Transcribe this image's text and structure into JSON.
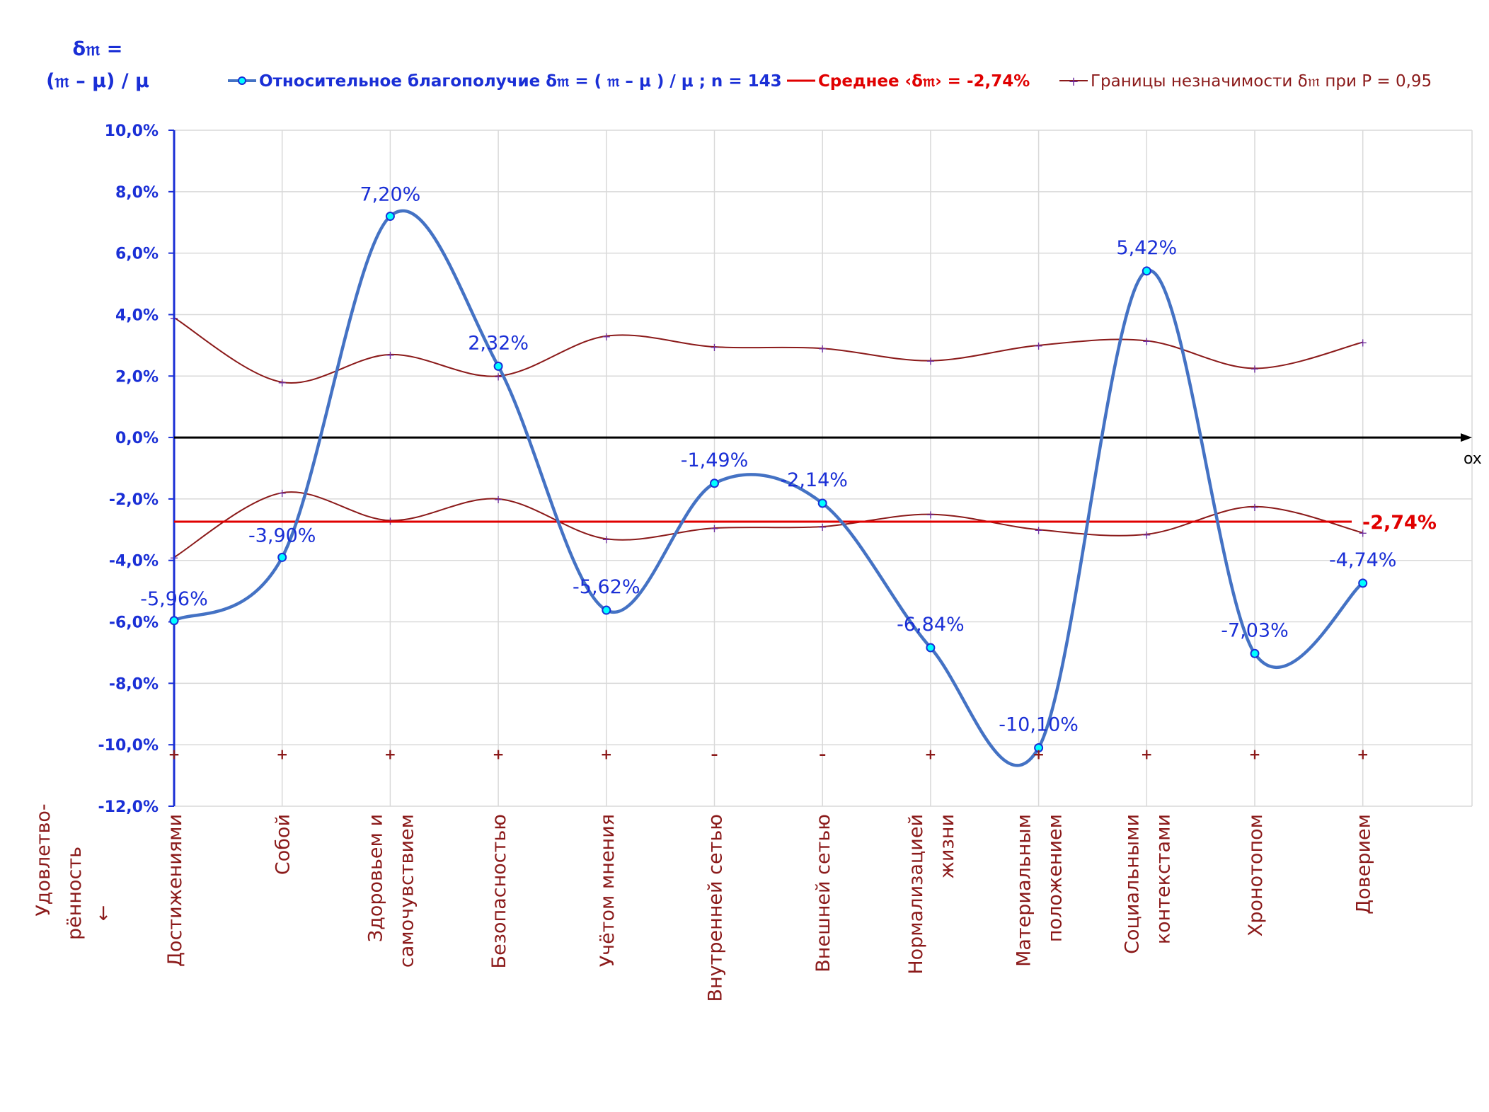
{
  "chart_data": {
    "type": "line",
    "y_title_line1": "δ𝔪 =",
    "y_title_line2": "(𝔪 – μ) / μ",
    "x_title_line1": "Удовлетво-",
    "x_title_line2": "рённость",
    "x_title_arrow": "↓",
    "x_axis_name": "ox",
    "ylim": [
      -0.12,
      0.1
    ],
    "yticks": [
      0.1,
      0.08,
      0.06,
      0.04,
      0.02,
      0.0,
      -0.02,
      -0.04,
      -0.06,
      -0.08,
      -0.1,
      -0.12
    ],
    "ytick_labels": [
      "10,0%",
      "8,0%",
      "6,0%",
      "4,0%",
      "2,0%",
      "0,0%",
      "-2,0%",
      "-4,0%",
      "-6,0%",
      "-8,0%",
      "-10,0%",
      "-12,0%"
    ],
    "categories": [
      [
        "Достижениями"
      ],
      [
        "Собой"
      ],
      [
        "Здоровьем и",
        "самочувствием"
      ],
      [
        "Безопасностью"
      ],
      [
        "Учётом мнения"
      ],
      [
        "Внутренней сетью"
      ],
      [
        "Внешней сетью"
      ],
      [
        "Нормализацией",
        "жизни"
      ],
      [
        "Материальным",
        "положением"
      ],
      [
        "Социальными",
        "контекстами"
      ],
      [
        "Хронотопом"
      ],
      [
        "Доверием"
      ]
    ],
    "series": [
      {
        "name": "Относительное благополучие δ𝔪 = ( 𝔪 – μ ) / μ ; n = 143",
        "color": "#4472c4",
        "values": [
          -0.0596,
          -0.039,
          0.072,
          0.0232,
          -0.0562,
          -0.0149,
          -0.0214,
          -0.0684,
          -0.101,
          0.0542,
          -0.0703,
          -0.0474
        ],
        "labels": [
          "-5,96%",
          "-3,90%",
          "7,20%",
          "2,32%",
          "-5,62%",
          "-1,49%",
          "-2,14%",
          "-6,84%",
          "-10,10%",
          "5,42%",
          "-7,03%",
          "-4,74%"
        ]
      },
      {
        "name": "Среднее ‹δ𝔪› = -2,74%",
        "color": "#e00000",
        "value": -0.0274,
        "label": "-2,74%"
      },
      {
        "name": "Границы незначимости δ𝔪 при P = 0,95",
        "color": "#8b1a1a",
        "upper": [
          0.039,
          0.018,
          0.027,
          0.02,
          0.033,
          0.0295,
          0.029,
          0.025,
          0.03,
          0.0315,
          0.0225,
          0.031
        ],
        "lower": [
          -0.039,
          -0.018,
          -0.027,
          -0.02,
          -0.033,
          -0.0295,
          -0.029,
          -0.025,
          -0.03,
          -0.0315,
          -0.0225,
          -0.031
        ]
      }
    ],
    "significance_marks": [
      "+",
      "+",
      "+",
      "+",
      "+",
      "–",
      "–",
      "+",
      "+",
      "+",
      "+",
      "+"
    ],
    "grid": true,
    "legend_position": "top"
  }
}
